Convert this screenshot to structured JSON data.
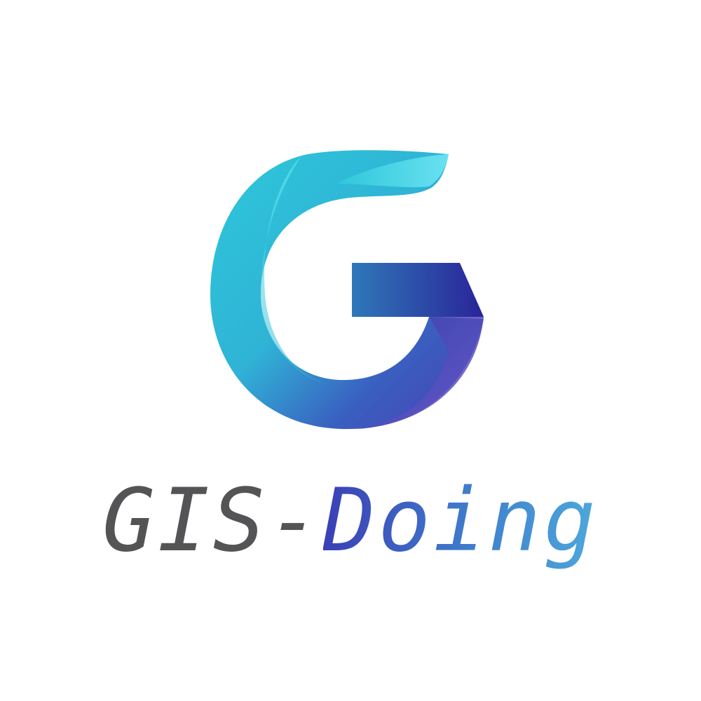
{
  "logo": {
    "icon": "g-ribbon-icon",
    "colors": {
      "cyan_light": "#5fe1ef",
      "cyan": "#2ec8da",
      "blue": "#2f8fd0",
      "indigo": "#2a2a9a",
      "purple": "#5a4fc0"
    }
  },
  "wordmark": {
    "prefix": "GIS-",
    "suffix": "Doing",
    "prefix_color": "#545456",
    "suffix_colors": [
      "#3b3fb6",
      "#4ea8dc"
    ]
  }
}
